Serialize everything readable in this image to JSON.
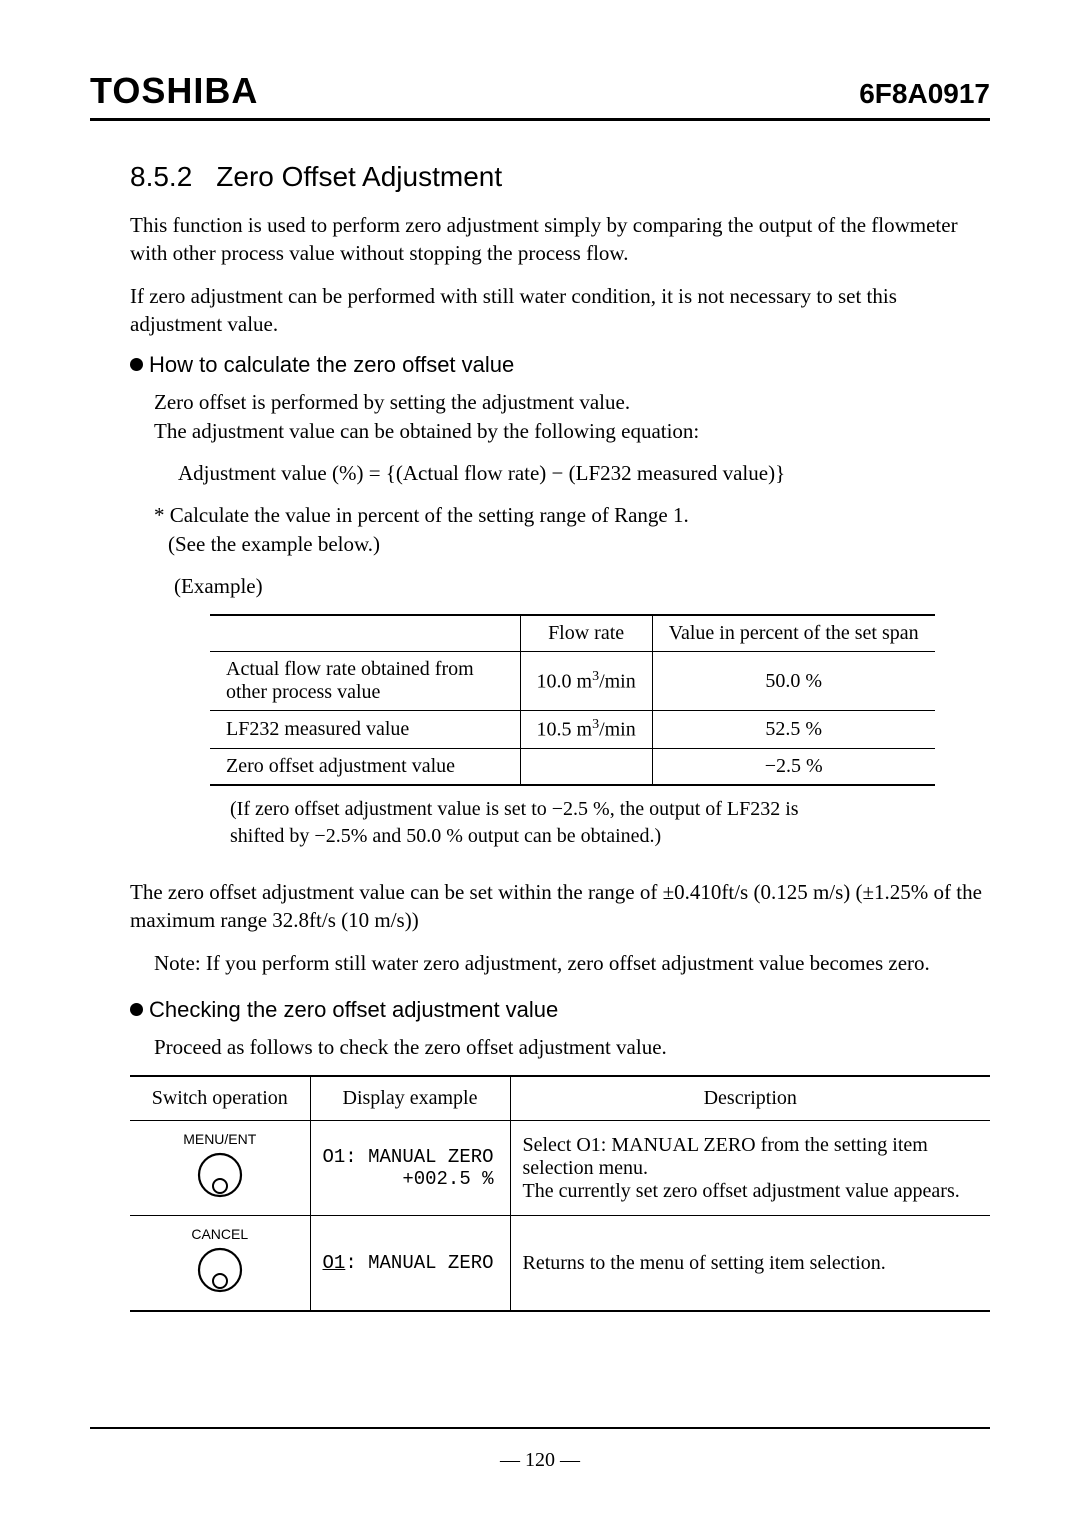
{
  "header": {
    "brand": "TOSHIBA",
    "docnum": "6F8A0917"
  },
  "section": {
    "number": "8.5.2",
    "title": "Zero Offset Adjustment"
  },
  "intro": {
    "p1": "This function is used to perform zero adjustment simply by comparing the output of the flowmeter with other process value without stopping the process flow.",
    "p2": "If zero adjustment can be performed with still water condition, it is not necessary to set this adjustment value."
  },
  "howto": {
    "heading": "How to calculate the zero offset value",
    "l1": "Zero offset is performed by setting the adjustment value.",
    "l2": "The adjustment value can be obtained by the following equation:",
    "eq": "Adjustment value (%) = {(Actual flow rate) − (LF232 measured value)}",
    "note1": "* Calculate the value in percent of the setting range of Range 1.",
    "note2": "(See the example below.)"
  },
  "example": {
    "label": "(Example)",
    "headers": {
      "c0": "",
      "c1": "Flow rate",
      "c2": "Value in percent of the set span"
    },
    "rows": [
      {
        "label": "Actual flow rate obtained from other process value",
        "flow_html": "10.0 m<sup>3</sup>/min",
        "pct": "50.0 %"
      },
      {
        "label": "LF232 measured value",
        "flow_html": "10.5 m<sup>3</sup>/min",
        "pct": "52.5 %"
      },
      {
        "label": "Zero offset adjustment value",
        "flow_html": "",
        "pct": "−2.5 %"
      }
    ],
    "footnote": "(If zero offset adjustment value is set to −2.5 %, the output of LF232 is shifted by −2.5% and 50.0 % output can be obtained.)"
  },
  "range": {
    "p": "The zero offset adjustment value can be set within the range of ±0.410ft/s (0.125 m/s) (±1.25% of the maximum range 32.8ft/s (10 m/s))",
    "note": "Note: If you perform still water zero adjustment, zero offset adjustment value becomes zero."
  },
  "check": {
    "heading": "Checking the zero offset adjustment value",
    "p": "Proceed as follows to check the zero offset adjustment value."
  },
  "ops": {
    "headers": {
      "c0": "Switch operation",
      "c1": "Display example",
      "c2": "Description"
    },
    "rows": [
      {
        "switch_label": "MENU/ENT",
        "display_line1": "O1: MANUAL ZERO",
        "display_line2": "       +002.5 %",
        "desc": "Select O1: MANUAL ZERO from the setting item selection menu.\nThe currently set zero offset adjustment value appears."
      },
      {
        "switch_label": "CANCEL",
        "display_line1_pre": "O1",
        "display_line1_post": ": MANUAL ZERO",
        "desc": "Returns to the menu of setting item selection."
      }
    ]
  },
  "footer": {
    "page": "— 120 —"
  },
  "colors": {
    "text": "#000000",
    "bg": "#ffffff"
  }
}
